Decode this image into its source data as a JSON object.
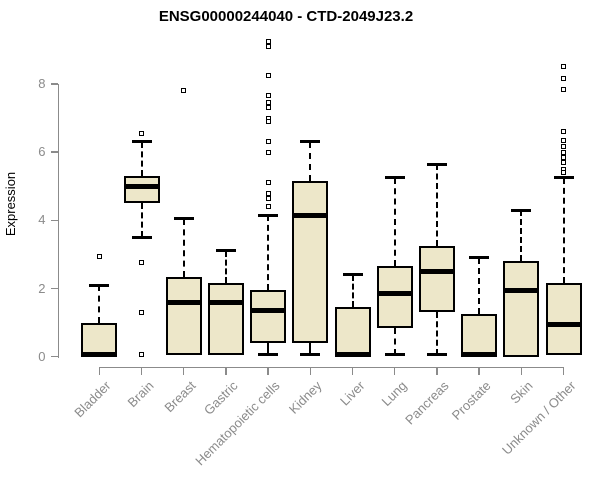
{
  "chart_data": {
    "type": "boxplot",
    "title": "ENSG00000244040 - CTD-2049J23.2",
    "ylabel": "Expression",
    "xlabel": "",
    "yticks": [
      0,
      2,
      4,
      6,
      8
    ],
    "ylim": [
      0,
      9.5
    ],
    "grid": false,
    "legend": "none",
    "categories": [
      "Bladder",
      "Brain",
      "Breast",
      "Gastric",
      "Hematopoietic cells",
      "Kidney",
      "Liver",
      "Lung",
      "Pancreas",
      "Prostate",
      "Skin",
      "Unknown / Other"
    ],
    "series": [
      {
        "category": "Bladder",
        "q1": 0.0,
        "median": 0.05,
        "q3": 1.0,
        "whisker_low": 0.0,
        "whisker_high": 2.1,
        "outliers": [
          2.95
        ]
      },
      {
        "category": "Brain",
        "q1": 4.5,
        "median": 5.0,
        "q3": 5.3,
        "whisker_low": 3.5,
        "whisker_high": 6.3,
        "outliers": [
          6.55,
          2.75,
          1.3,
          0.05
        ]
      },
      {
        "category": "Breast",
        "q1": 0.05,
        "median": 1.6,
        "q3": 2.35,
        "whisker_low": 0.05,
        "whisker_high": 4.05,
        "outliers": [
          7.8
        ]
      },
      {
        "category": "Gastric",
        "q1": 0.05,
        "median": 1.6,
        "q3": 2.15,
        "whisker_low": 0.05,
        "whisker_high": 3.1,
        "outliers": []
      },
      {
        "category": "Hematopoietic cells",
        "q1": 0.4,
        "median": 1.35,
        "q3": 1.95,
        "whisker_low": 0.05,
        "whisker_high": 4.15,
        "outliers": [
          9.25,
          9.1,
          8.25,
          7.65,
          7.45,
          7.3,
          7.0,
          6.9,
          6.3,
          6.0,
          5.1,
          4.8,
          4.65,
          4.4
        ]
      },
      {
        "category": "Kidney",
        "q1": 0.4,
        "median": 4.15,
        "q3": 5.15,
        "whisker_low": 0.05,
        "whisker_high": 6.3,
        "outliers": []
      },
      {
        "category": "Liver",
        "q1": 0.0,
        "median": 0.05,
        "q3": 1.45,
        "whisker_low": 0.0,
        "whisker_high": 2.4,
        "outliers": []
      },
      {
        "category": "Lung",
        "q1": 0.85,
        "median": 1.85,
        "q3": 2.65,
        "whisker_low": 0.05,
        "whisker_high": 5.25,
        "outliers": []
      },
      {
        "category": "Pancreas",
        "q1": 1.3,
        "median": 2.5,
        "q3": 3.25,
        "whisker_low": 0.05,
        "whisker_high": 5.65,
        "outliers": []
      },
      {
        "category": "Prostate",
        "q1": 0.0,
        "median": 0.05,
        "q3": 1.25,
        "whisker_low": 0.0,
        "whisker_high": 2.9,
        "outliers": []
      },
      {
        "category": "Skin",
        "q1": 0.0,
        "median": 1.95,
        "q3": 2.8,
        "whisker_low": 0.0,
        "whisker_high": 4.3,
        "outliers": []
      },
      {
        "category": "Unknown / Other",
        "q1": 0.05,
        "median": 0.95,
        "q3": 2.15,
        "whisker_low": 0.05,
        "whisker_high": 5.25,
        "outliers": [
          8.5,
          8.15,
          7.85,
          6.6,
          6.35,
          6.15,
          6.0,
          5.85,
          5.7,
          5.5,
          5.4
        ]
      }
    ],
    "colors": {
      "box_fill": "#EDE7C9",
      "box_stroke": "#000000",
      "median": "#000000",
      "axis": "#8B8B8B",
      "title": "#000000",
      "background": "#FFFFFF"
    }
  }
}
